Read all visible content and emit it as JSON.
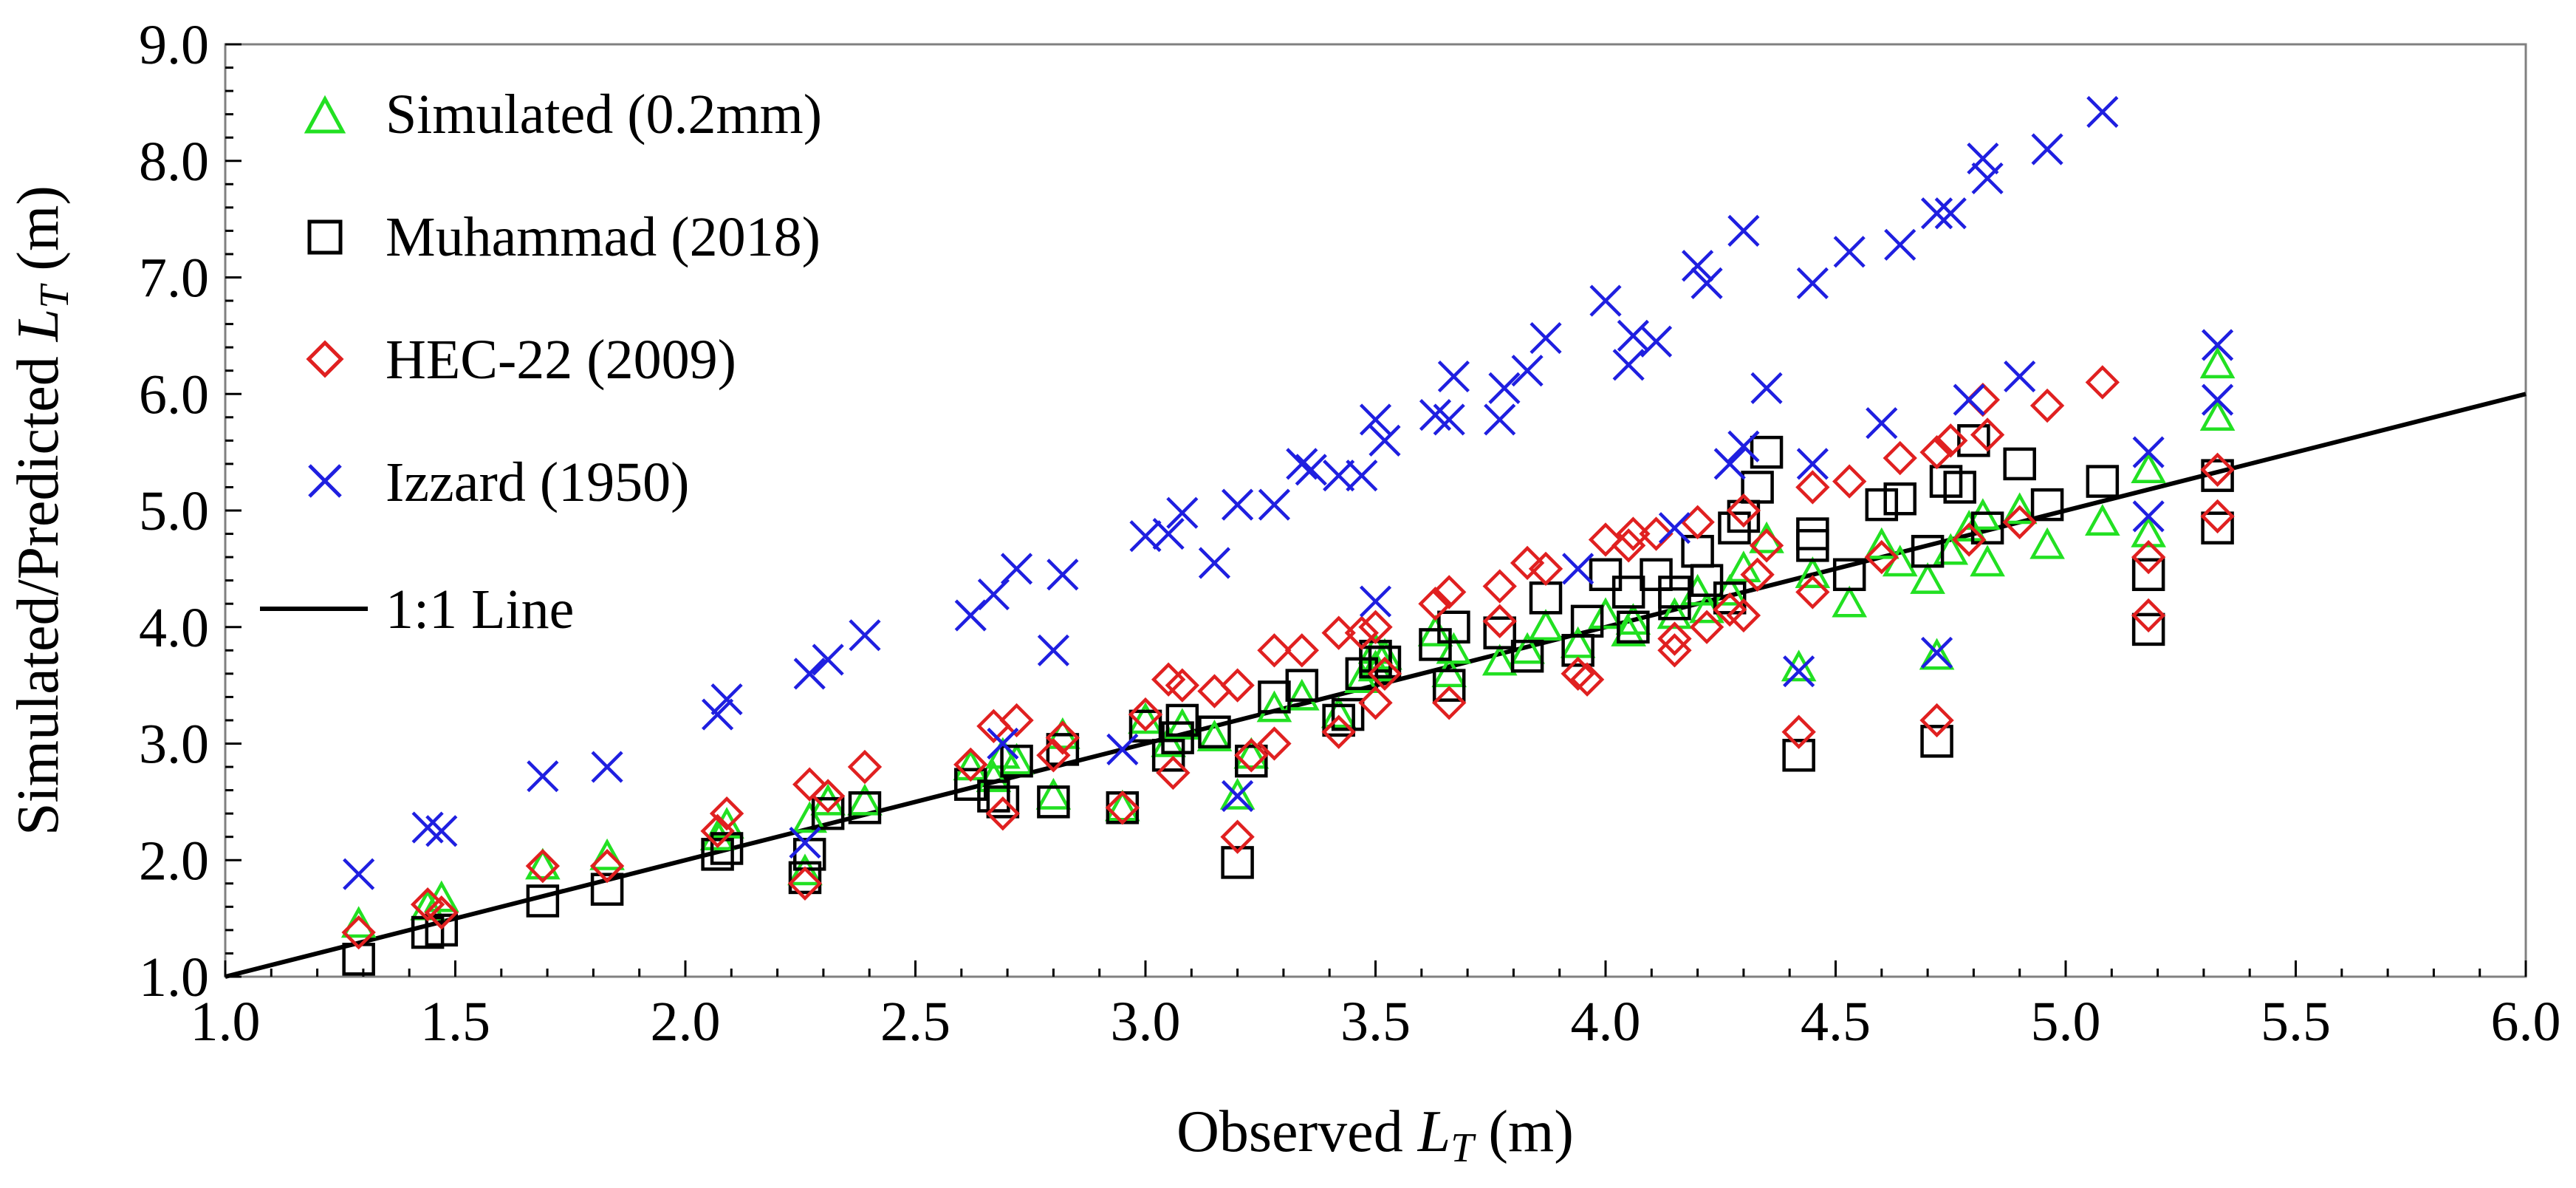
{
  "chart_data": {
    "type": "scatter",
    "xlabel": "Observed",
    "xlabel_sym": "L",
    "xlabel_sub": "T",
    "xlabel_unit": " (m)",
    "ylabel": "Simulated/Predicted",
    "ylabel_sym": "L",
    "ylabel_sub": "T",
    "ylabel_unit": " (m)",
    "xlim": [
      1.0,
      6.0
    ],
    "ylim": [
      1.0,
      9.0
    ],
    "xticks": [
      "1.0",
      "1.5",
      "2.0",
      "2.5",
      "3.0",
      "3.5",
      "4.0",
      "4.5",
      "5.0",
      "5.5",
      "6.0"
    ],
    "yticks": [
      "1.0",
      "2.0",
      "3.0",
      "4.0",
      "5.0",
      "6.0",
      "7.0",
      "8.0",
      "9.0"
    ],
    "legend_position": "top-left",
    "legend": [
      "Simulated (0.2mm)",
      "Muhammad (2018)",
      "HEC-22 (2009)",
      "Izzard (1950)",
      "1:1 Line"
    ],
    "reference_line": {
      "name": "1:1 Line",
      "x": [
        1.0,
        6.0
      ],
      "y": [
        1.0,
        6.0
      ],
      "color": "#000000"
    },
    "series": [
      {
        "name": "Simulated (0.2mm)",
        "marker": "triangle",
        "color": "#22e022",
        "points": [
          [
            1.29,
            1.45
          ],
          [
            1.44,
            1.6
          ],
          [
            1.47,
            1.67
          ],
          [
            1.69,
            1.95
          ],
          [
            1.83,
            2.03
          ],
          [
            2.07,
            2.2
          ],
          [
            2.09,
            2.3
          ],
          [
            2.26,
            1.9
          ],
          [
            2.27,
            2.35
          ],
          [
            2.31,
            2.5
          ],
          [
            2.39,
            2.5
          ],
          [
            2.62,
            2.8
          ],
          [
            2.67,
            2.7
          ],
          [
            2.69,
            2.9
          ],
          [
            2.72,
            2.85
          ],
          [
            2.8,
            2.55
          ],
          [
            2.82,
            3.07
          ],
          [
            2.95,
            2.45
          ],
          [
            3.0,
            3.2
          ],
          [
            3.05,
            3.0
          ],
          [
            3.08,
            3.15
          ],
          [
            3.15,
            3.05
          ],
          [
            3.2,
            2.55
          ],
          [
            3.23,
            2.9
          ],
          [
            3.28,
            3.3
          ],
          [
            3.34,
            3.4
          ],
          [
            3.42,
            3.25
          ],
          [
            3.47,
            3.55
          ],
          [
            3.5,
            3.65
          ],
          [
            3.5,
            3.8
          ],
          [
            3.52,
            3.75
          ],
          [
            3.63,
            3.95
          ],
          [
            3.66,
            3.6
          ],
          [
            3.67,
            3.8
          ],
          [
            3.77,
            3.7
          ],
          [
            3.83,
            3.8
          ],
          [
            3.87,
            4.0
          ],
          [
            3.94,
            3.85
          ],
          [
            4.0,
            4.1
          ],
          [
            4.05,
            3.95
          ],
          [
            4.06,
            4.05
          ],
          [
            4.15,
            4.1
          ],
          [
            4.2,
            4.3
          ],
          [
            4.22,
            4.15
          ],
          [
            4.27,
            4.3
          ],
          [
            4.3,
            4.5
          ],
          [
            4.35,
            4.75
          ],
          [
            4.42,
            3.65
          ],
          [
            4.45,
            4.45
          ],
          [
            4.53,
            4.2
          ],
          [
            4.6,
            4.7
          ],
          [
            4.64,
            4.55
          ],
          [
            4.7,
            4.4
          ],
          [
            4.72,
            3.75
          ],
          [
            4.75,
            4.65
          ],
          [
            4.79,
            4.85
          ],
          [
            4.82,
            4.95
          ],
          [
            4.83,
            4.55
          ],
          [
            4.9,
            5.0
          ],
          [
            4.96,
            4.7
          ],
          [
            5.08,
            4.9
          ],
          [
            5.18,
            5.35
          ],
          [
            5.18,
            4.8
          ],
          [
            5.33,
            6.25
          ],
          [
            5.33,
            5.8
          ]
        ]
      },
      {
        "name": "Muhammad (2018)",
        "marker": "square",
        "color": "#000000",
        "points": [
          [
            1.29,
            1.15
          ],
          [
            1.44,
            1.38
          ],
          [
            1.47,
            1.4
          ],
          [
            1.69,
            1.65
          ],
          [
            1.83,
            1.75
          ],
          [
            2.07,
            2.05
          ],
          [
            2.09,
            2.1
          ],
          [
            2.26,
            1.85
          ],
          [
            2.27,
            2.05
          ],
          [
            2.31,
            2.4
          ],
          [
            2.39,
            2.45
          ],
          [
            2.62,
            2.65
          ],
          [
            2.67,
            2.55
          ],
          [
            2.69,
            2.5
          ],
          [
            2.72,
            2.85
          ],
          [
            2.8,
            2.5
          ],
          [
            2.82,
            2.95
          ],
          [
            2.95,
            2.45
          ],
          [
            3.0,
            3.15
          ],
          [
            3.05,
            2.9
          ],
          [
            3.07,
            3.05
          ],
          [
            3.08,
            3.2
          ],
          [
            3.15,
            3.1
          ],
          [
            3.2,
            1.98
          ],
          [
            3.23,
            2.85
          ],
          [
            3.28,
            3.4
          ],
          [
            3.34,
            3.5
          ],
          [
            3.42,
            3.2
          ],
          [
            3.44,
            3.25
          ],
          [
            3.47,
            3.6
          ],
          [
            3.5,
            3.7
          ],
          [
            3.5,
            3.75
          ],
          [
            3.52,
            3.7
          ],
          [
            3.63,
            3.85
          ],
          [
            3.66,
            3.5
          ],
          [
            3.67,
            4.0
          ],
          [
            3.77,
            3.95
          ],
          [
            3.83,
            3.75
          ],
          [
            3.87,
            4.25
          ],
          [
            3.94,
            3.8
          ],
          [
            3.96,
            4.05
          ],
          [
            4.0,
            4.45
          ],
          [
            4.05,
            4.3
          ],
          [
            4.06,
            4.0
          ],
          [
            4.11,
            4.45
          ],
          [
            4.15,
            4.2
          ],
          [
            4.15,
            4.3
          ],
          [
            4.2,
            4.65
          ],
          [
            4.22,
            4.4
          ],
          [
            4.27,
            4.25
          ],
          [
            4.28,
            4.85
          ],
          [
            4.3,
            4.95
          ],
          [
            4.33,
            5.2
          ],
          [
            4.35,
            5.5
          ],
          [
            4.42,
            2.9
          ],
          [
            4.45,
            4.7
          ],
          [
            4.45,
            4.8
          ],
          [
            4.53,
            4.45
          ],
          [
            4.6,
            5.05
          ],
          [
            4.64,
            5.1
          ],
          [
            4.7,
            4.65
          ],
          [
            4.72,
            3.02
          ],
          [
            4.74,
            5.25
          ],
          [
            4.77,
            5.2
          ],
          [
            4.8,
            5.6
          ],
          [
            4.83,
            4.85
          ],
          [
            4.9,
            5.4
          ],
          [
            4.96,
            5.05
          ],
          [
            5.08,
            5.25
          ],
          [
            5.18,
            4.45
          ],
          [
            5.18,
            3.98
          ],
          [
            5.33,
            5.3
          ],
          [
            5.33,
            4.85
          ]
        ]
      },
      {
        "name": "HEC-22 (2009)",
        "marker": "diamond",
        "color": "#e02020",
        "points": [
          [
            1.29,
            1.38
          ],
          [
            1.44,
            1.62
          ],
          [
            1.47,
            1.55
          ],
          [
            1.69,
            1.95
          ],
          [
            1.83,
            1.95
          ],
          [
            2.07,
            2.25
          ],
          [
            2.09,
            2.4
          ],
          [
            2.26,
            1.8
          ],
          [
            2.27,
            2.65
          ],
          [
            2.31,
            2.55
          ],
          [
            2.39,
            2.8
          ],
          [
            2.62,
            2.82
          ],
          [
            2.67,
            3.15
          ],
          [
            2.69,
            2.4
          ],
          [
            2.72,
            3.2
          ],
          [
            2.8,
            2.9
          ],
          [
            2.82,
            3.05
          ],
          [
            2.95,
            2.45
          ],
          [
            3.0,
            3.25
          ],
          [
            3.05,
            3.55
          ],
          [
            3.06,
            2.75
          ],
          [
            3.08,
            3.5
          ],
          [
            3.15,
            3.45
          ],
          [
            3.2,
            3.5
          ],
          [
            3.2,
            2.2
          ],
          [
            3.23,
            2.9
          ],
          [
            3.28,
            3.0
          ],
          [
            3.28,
            3.8
          ],
          [
            3.34,
            3.8
          ],
          [
            3.42,
            3.1
          ],
          [
            3.42,
            3.95
          ],
          [
            3.47,
            3.95
          ],
          [
            3.5,
            4.0
          ],
          [
            3.5,
            3.35
          ],
          [
            3.52,
            3.6
          ],
          [
            3.63,
            4.2
          ],
          [
            3.66,
            3.35
          ],
          [
            3.66,
            4.3
          ],
          [
            3.77,
            4.35
          ],
          [
            3.77,
            4.05
          ],
          [
            3.83,
            4.55
          ],
          [
            3.87,
            4.5
          ],
          [
            3.94,
            3.6
          ],
          [
            3.96,
            3.55
          ],
          [
            4.0,
            4.75
          ],
          [
            4.05,
            4.7
          ],
          [
            4.06,
            4.8
          ],
          [
            4.11,
            4.8
          ],
          [
            4.15,
            3.8
          ],
          [
            4.15,
            3.9
          ],
          [
            4.2,
            4.9
          ],
          [
            4.22,
            4.0
          ],
          [
            4.27,
            4.15
          ],
          [
            4.3,
            4.1
          ],
          [
            4.3,
            5.0
          ],
          [
            4.33,
            4.45
          ],
          [
            4.35,
            4.7
          ],
          [
            4.42,
            3.1
          ],
          [
            4.45,
            5.2
          ],
          [
            4.45,
            4.3
          ],
          [
            4.53,
            5.25
          ],
          [
            4.6,
            4.6
          ],
          [
            4.64,
            5.45
          ],
          [
            4.72,
            3.2
          ],
          [
            4.72,
            5.5
          ],
          [
            4.75,
            5.6
          ],
          [
            4.79,
            4.75
          ],
          [
            4.82,
            5.95
          ],
          [
            4.83,
            5.65
          ],
          [
            4.9,
            4.9
          ],
          [
            4.96,
            5.9
          ],
          [
            5.08,
            6.1
          ],
          [
            5.18,
            4.6
          ],
          [
            5.18,
            4.1
          ],
          [
            5.33,
            5.35
          ],
          [
            5.33,
            4.95
          ]
        ]
      },
      {
        "name": "Izzard (1950)",
        "marker": "cross",
        "color": "#1f1fe0",
        "points": [
          [
            1.29,
            1.88
          ],
          [
            1.44,
            2.28
          ],
          [
            1.47,
            2.25
          ],
          [
            1.69,
            2.72
          ],
          [
            1.83,
            2.8
          ],
          [
            2.07,
            3.25
          ],
          [
            2.09,
            3.38
          ],
          [
            2.26,
            2.15
          ],
          [
            2.27,
            3.6
          ],
          [
            2.31,
            3.72
          ],
          [
            2.39,
            3.93
          ],
          [
            2.62,
            4.1
          ],
          [
            2.67,
            4.28
          ],
          [
            2.69,
            3.0
          ],
          [
            2.72,
            4.5
          ],
          [
            2.8,
            3.8
          ],
          [
            2.82,
            4.45
          ],
          [
            2.95,
            2.95
          ],
          [
            3.0,
            4.78
          ],
          [
            3.05,
            4.8
          ],
          [
            3.08,
            4.98
          ],
          [
            3.15,
            4.55
          ],
          [
            3.2,
            5.05
          ],
          [
            3.2,
            2.55
          ],
          [
            3.28,
            5.05
          ],
          [
            3.34,
            5.4
          ],
          [
            3.36,
            5.35
          ],
          [
            3.42,
            5.3
          ],
          [
            3.47,
            5.3
          ],
          [
            3.5,
            5.78
          ],
          [
            3.5,
            4.22
          ],
          [
            3.52,
            5.6
          ],
          [
            3.63,
            5.82
          ],
          [
            3.66,
            5.78
          ],
          [
            3.67,
            6.15
          ],
          [
            3.77,
            5.78
          ],
          [
            3.78,
            6.05
          ],
          [
            3.83,
            6.2
          ],
          [
            3.87,
            6.48
          ],
          [
            3.94,
            4.5
          ],
          [
            4.0,
            6.8
          ],
          [
            4.05,
            6.25
          ],
          [
            4.06,
            6.5
          ],
          [
            4.11,
            6.45
          ],
          [
            4.15,
            4.85
          ],
          [
            4.2,
            7.1
          ],
          [
            4.22,
            6.95
          ],
          [
            4.27,
            5.4
          ],
          [
            4.3,
            5.55
          ],
          [
            4.3,
            7.4
          ],
          [
            4.35,
            6.05
          ],
          [
            4.42,
            3.62
          ],
          [
            4.45,
            5.4
          ],
          [
            4.45,
            6.95
          ],
          [
            4.53,
            7.22
          ],
          [
            4.6,
            5.75
          ],
          [
            4.64,
            7.28
          ],
          [
            4.72,
            3.78
          ],
          [
            4.72,
            7.55
          ],
          [
            4.75,
            7.55
          ],
          [
            4.79,
            5.95
          ],
          [
            4.82,
            8.02
          ],
          [
            4.83,
            7.85
          ],
          [
            4.9,
            6.15
          ],
          [
            4.96,
            8.1
          ],
          [
            5.08,
            8.42
          ],
          [
            5.18,
            5.5
          ],
          [
            5.18,
            4.95
          ],
          [
            5.33,
            6.42
          ],
          [
            5.33,
            5.95
          ]
        ]
      }
    ]
  }
}
